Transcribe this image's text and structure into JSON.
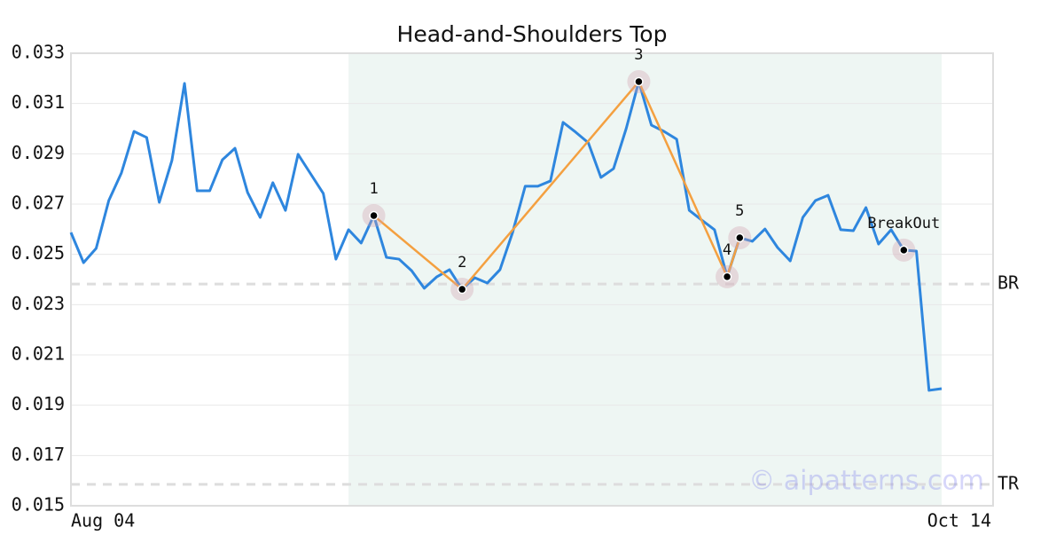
{
  "chart_data": {
    "type": "line",
    "title": "Head-and-Shoulders Top",
    "categories": [
      "Aug 04",
      null,
      null,
      null,
      null,
      null,
      null,
      null,
      null,
      null,
      null,
      null,
      null,
      null,
      null,
      null,
      null,
      null,
      null,
      null,
      null,
      null,
      null,
      null,
      null,
      null,
      null,
      null,
      null,
      null,
      null,
      null,
      null,
      null,
      null,
      null,
      null,
      null,
      null,
      null,
      null,
      null,
      null,
      null,
      null,
      null,
      null,
      null,
      null,
      null,
      null,
      null,
      null,
      null,
      null,
      null,
      null,
      null,
      null,
      null,
      null,
      null,
      null,
      null,
      null,
      null,
      null,
      null,
      null,
      "Oct 14"
    ],
    "values": [
      0.02587,
      0.02467,
      0.02524,
      0.02714,
      0.02824,
      0.02989,
      0.02965,
      0.02707,
      0.02873,
      0.0318,
      0.02753,
      0.02753,
      0.02876,
      0.02922,
      0.02746,
      0.02647,
      0.02785,
      0.02675,
      0.02898,
      0.0282,
      0.02742,
      0.02481,
      0.02598,
      0.02545,
      0.02654,
      0.02488,
      0.02481,
      0.02435,
      0.02365,
      0.02411,
      0.02439,
      0.02361,
      0.02407,
      0.02386,
      0.02439,
      0.02587,
      0.02771,
      0.02771,
      0.02792,
      0.03025,
      0.02986,
      0.02944,
      0.02806,
      0.02841,
      0.03,
      0.03187,
      0.03014,
      0.02989,
      0.02958,
      0.02675,
      0.02636,
      0.02598,
      0.02411,
      0.02566,
      0.02552,
      0.02601,
      0.02527,
      0.02474,
      0.02647,
      0.02714,
      0.02735,
      0.02598,
      0.02594,
      0.02686,
      0.02541,
      0.02598,
      0.02517,
      0.02513,
      0.01959,
      0.01966
    ],
    "color": "#2e86de",
    "ylim": [
      0.015,
      0.033
    ],
    "yticks": [
      0.015,
      0.017,
      0.019,
      0.021,
      0.023,
      0.025,
      0.027,
      0.029,
      0.031,
      0.033
    ],
    "grid": true,
    "shaded_range": {
      "start": 22,
      "end": 69,
      "color": "#eef6f3"
    },
    "pattern": {
      "indices": [
        24,
        31,
        45,
        52,
        53
      ],
      "values": [
        0.02654,
        0.02361,
        0.03187,
        0.02411,
        0.02566
      ],
      "labels": [
        "1",
        "2",
        "3",
        "4",
        "5"
      ],
      "color": "#f4a040"
    },
    "breakout": {
      "index": 66,
      "value": 0.02517,
      "label": "BreakOut"
    },
    "levels": [
      {
        "label": "BR",
        "value": 0.02382
      },
      {
        "label": "TR",
        "value": 0.01585
      }
    ],
    "watermark": "© aipatterns.com"
  }
}
